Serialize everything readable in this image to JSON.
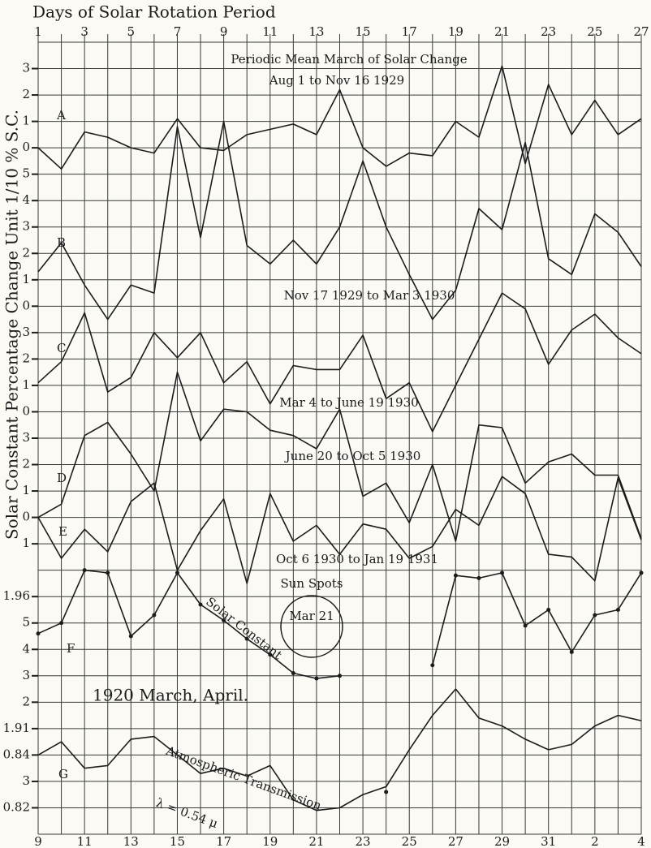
{
  "title": "Days of Solar Rotation Period",
  "y_label": "Solar Constant Percentage Change Unit 1/10 % S.C.",
  "chart_data": [
    {
      "type": "line",
      "title": "Periodic Mean March of Solar Change",
      "categories": [
        1,
        null,
        3,
        null,
        5,
        null,
        7,
        null,
        9,
        null,
        11,
        null,
        13,
        null,
        15,
        null,
        17,
        null,
        19,
        null,
        21,
        null,
        23,
        null,
        25,
        null,
        27
      ],
      "series": [
        {
          "name": "A",
          "annotation": "Aug 1 to Nov 16 1929",
          "ylim": [
            -26,
            4
          ],
          "yticks": [
            3,
            2,
            1,
            0
          ],
          "values": [
            0,
            -0.8,
            0.6,
            0.4,
            0,
            -0.2,
            1.1,
            0,
            -0.1,
            0.5,
            0.7,
            0.9,
            0.5,
            2.2,
            0,
            -0.7,
            -0.2,
            -0.3,
            1.0,
            0.4,
            3.1,
            -0.6,
            2.4,
            0.5,
            1.8,
            0.5,
            1.1
          ]
        },
        {
          "name": "B",
          "annotation": "Nov 17 1929 to Mar 3 1930",
          "ylim": [
            -20,
            10
          ],
          "yticks": [
            5,
            4,
            3,
            2,
            1,
            0
          ],
          "values": [
            1.3,
            2.4,
            0.8,
            -0.5,
            0.8,
            0.5,
            6.8,
            2.6,
            7.0,
            2.3,
            1.6,
            2.5,
            1.6,
            3.0,
            5.5,
            3.0,
            1.2,
            -0.5,
            0.6,
            3.7,
            2.9,
            6.2,
            1.8,
            1.2,
            3.5,
            2.8,
            1.5
          ]
        },
        {
          "name": "C",
          "annotation": "Mar 4 to June 19 1930",
          "ylim": [
            -16,
            14
          ],
          "yticks": [
            3,
            2,
            1,
            0
          ],
          "values": [
            1.1,
            1.9,
            3.75,
            0.75,
            1.3,
            3.0,
            2.05,
            3.0,
            1.1,
            1.9,
            0.3,
            1.75,
            1.6,
            1.6,
            2.9,
            0.5,
            1.1,
            -0.75,
            1.0,
            2.75,
            4.5,
            3.9,
            1.8,
            3.1,
            3.7,
            2.8,
            2.2
          ]
        },
        {
          "name": "D",
          "annotation": "June 20 to Oct 5 1930",
          "ylim": [
            -12,
            18
          ],
          "yticks": [
            3,
            2,
            1,
            0
          ],
          "values": [
            0,
            0.5,
            3.1,
            3.6,
            2.4,
            1.0,
            5.5,
            2.9,
            4.1,
            4.0,
            3.3,
            3.1,
            2.6,
            4.1,
            0.8,
            1.3,
            -0.2,
            2.0,
            -0.9,
            3.5,
            3.4,
            1.3,
            2.1,
            2.4,
            1.6,
            1.6,
            -0.8
          ]
        },
        {
          "name": "E",
          "annotation": "Oct 6 1930 to Jan 19 1931",
          "ylim": [
            -12,
            18
          ],
          "yticks": [
            {
              "value": -1,
              "label": "1"
            }
          ],
          "values": [
            0,
            -1.55,
            -0.45,
            -1.3,
            0.6,
            1.3,
            -2.0,
            -0.5,
            0.7,
            -2.5,
            0.9,
            -0.9,
            -0.3,
            -1.4,
            -0.25,
            -0.45,
            -1.55,
            -1.1,
            0.3,
            -0.3,
            1.55,
            0.9,
            -1.4,
            -1.5,
            -2.4,
            1.5,
            -0.85
          ]
        }
      ]
    },
    {
      "type": "line",
      "title": "1920 March, April.",
      "categories": [
        9,
        null,
        11,
        null,
        13,
        null,
        15,
        null,
        17,
        null,
        19,
        null,
        21,
        null,
        23,
        null,
        25,
        null,
        27,
        null,
        29,
        null,
        31,
        null,
        2,
        null,
        4
      ],
      "annotations": [
        "Sun Spots",
        "Mar 21"
      ],
      "series": [
        {
          "name": "F",
          "annotation": "Solar Constant",
          "ylim": [
            1.87,
            2.17
          ],
          "yticks": [
            1.96,
            {
              "value": 1.95,
              "label": "5"
            },
            {
              "value": 1.94,
              "label": "4"
            },
            {
              "value": 1.93,
              "label": "3"
            },
            {
              "value": 1.92,
              "label": "2"
            },
            1.91
          ],
          "values": [
            1.946,
            1.95,
            1.97,
            1.969,
            1.945,
            1.953,
            1.969,
            1.957,
            1.951,
            1.944,
            1.938,
            1.931,
            1.929,
            1.93,
            null,
            1.886,
            null,
            1.934,
            1.968,
            1.967,
            1.969,
            1.949,
            1.955,
            1.939,
            1.953,
            1.955,
            1.969
          ]
        },
        {
          "name": "G",
          "annotation": "Atmospheric Transmission",
          "subannotation": "λ = 0.54 μ",
          "ylim": [
            0.81,
            1.11
          ],
          "yticks": [
            0.84,
            {
              "value": 0.83,
              "label": "3"
            },
            0.82
          ],
          "values": [
            0.84,
            0.845,
            0.835,
            0.836,
            0.846,
            0.847,
            0.84,
            0.833,
            0.835,
            0.832,
            0.836,
            0.823,
            0.819,
            0.82,
            0.825,
            0.828,
            0.842,
            0.855,
            0.865,
            0.854,
            0.851,
            0.846,
            0.842,
            0.844,
            0.851,
            0.855,
            0.853
          ]
        }
      ]
    }
  ]
}
